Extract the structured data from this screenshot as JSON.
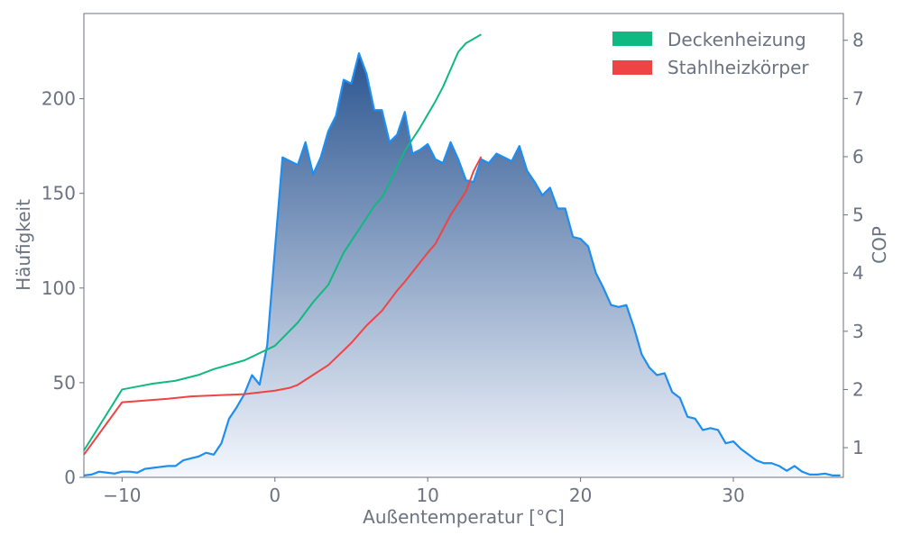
{
  "chart_data": {
    "type": "area+line",
    "xlabel": "Außentemperatur [°C]",
    "ylabel": "Häufigkeit",
    "y2label": "COP",
    "xlim": [
      -12.5,
      37.2
    ],
    "ylim": [
      0,
      245
    ],
    "y2lim": [
      0.49,
      8.46
    ],
    "xticks": [
      -10,
      0,
      10,
      20,
      30
    ],
    "xtick_labels": [
      "−10",
      "0",
      "10",
      "20",
      "30"
    ],
    "yticks": [
      0,
      50,
      100,
      150,
      200
    ],
    "y2ticks": [
      1,
      2,
      3,
      4,
      5,
      6,
      7,
      8
    ],
    "grid": false,
    "legend_position": "top-right",
    "histogram": {
      "color": "#1e8ef0",
      "gradient_top": "#2b5590",
      "gradient_bottom": "#f5f8fe",
      "x": [
        -12.5,
        -12,
        -11.5,
        -11,
        -10.5,
        -10,
        -9.5,
        -9,
        -8.5,
        -8,
        -7.5,
        -7,
        -6.5,
        -6,
        -5.5,
        -5,
        -4.5,
        -4,
        -3.5,
        -3,
        -2.5,
        -2,
        -1.5,
        -1,
        -0.5,
        0,
        0.5,
        1,
        1.5,
        2,
        2.5,
        3,
        3.5,
        4,
        4.5,
        5,
        5.5,
        6,
        6.5,
        7,
        7.5,
        8,
        8.5,
        9,
        9.5,
        10,
        10.5,
        11,
        11.5,
        12,
        12.5,
        13,
        13.5,
        14,
        14.5,
        15,
        15.5,
        16,
        16.5,
        17,
        17.5,
        18,
        18.5,
        19,
        19.5,
        20,
        20.5,
        21,
        21.5,
        22,
        22.5,
        23,
        23.5,
        24,
        24.5,
        25,
        25.5,
        26,
        26.5,
        27,
        27.5,
        28,
        28.5,
        29,
        29.5,
        30,
        30.5,
        31,
        31.5,
        32,
        32.5,
        33,
        33.5,
        34,
        34.5,
        35,
        35.5,
        36,
        36.5,
        37
      ],
      "values": [
        1,
        1.5,
        3,
        2.5,
        2,
        3,
        3,
        2.5,
        4.5,
        5,
        5.5,
        6,
        6,
        9,
        10,
        11,
        13,
        12,
        18,
        31,
        37,
        44,
        54,
        49,
        70,
        120,
        169,
        167,
        165,
        177,
        160,
        169,
        183,
        191,
        210,
        208,
        224,
        213,
        194,
        194,
        177,
        181,
        193,
        171,
        173,
        176,
        168,
        166,
        177,
        168,
        157,
        156,
        168,
        166,
        171,
        169,
        167,
        175,
        162,
        156,
        149,
        153,
        142,
        142,
        127,
        126,
        122,
        108,
        100,
        91,
        90,
        91,
        79,
        65,
        58,
        54,
        55,
        45,
        42,
        32,
        31,
        25,
        26,
        25,
        18,
        19,
        15,
        12,
        9,
        7.5,
        7.5,
        6,
        3.5,
        6,
        3,
        1.5,
        1.5,
        2,
        1,
        1
      ]
    },
    "series": [
      {
        "name": "Deckenheizung",
        "color": "#10b981",
        "x": [
          -12.5,
          -10,
          -9,
          -8,
          -6.5,
          -5,
          -4,
          -2,
          0,
          1.5,
          2.5,
          3.5,
          4.5,
          5.5,
          6.5,
          7,
          7.5,
          8.5,
          9.5,
          10.5,
          11,
          12,
          12.5,
          13.5
        ],
        "values": [
          0.95,
          2.0,
          2.05,
          2.1,
          2.15,
          2.25,
          2.35,
          2.5,
          2.75,
          3.15,
          3.5,
          3.8,
          4.35,
          4.75,
          5.15,
          5.3,
          5.55,
          6.1,
          6.5,
          6.95,
          7.2,
          7.8,
          7.95,
          8.1
        ]
      },
      {
        "name": "Stahlheizkörper",
        "color": "#ef4444",
        "x": [
          -12.5,
          -10,
          -9,
          -7,
          -5.5,
          -2,
          0,
          1,
          1.5,
          2.5,
          3.5,
          5,
          6,
          7,
          8,
          8.5,
          10,
          10.5,
          11,
          11.5,
          12.5,
          13,
          13.5
        ],
        "values": [
          0.88,
          1.78,
          1.8,
          1.84,
          1.88,
          1.92,
          1.98,
          2.03,
          2.08,
          2.25,
          2.42,
          2.8,
          3.1,
          3.35,
          3.7,
          3.85,
          4.35,
          4.5,
          4.75,
          5.0,
          5.4,
          5.75,
          6.0
        ]
      }
    ]
  }
}
